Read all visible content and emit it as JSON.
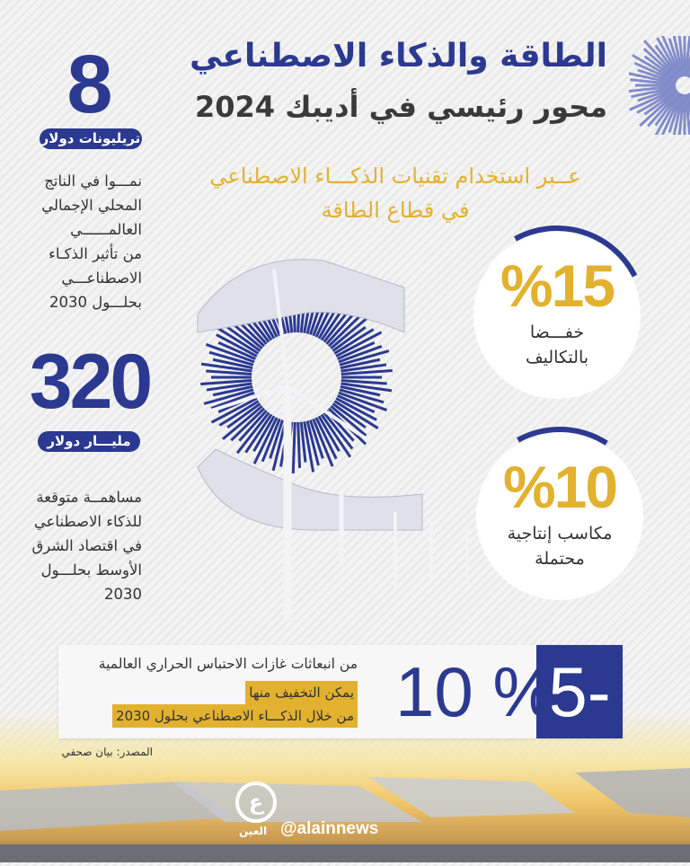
{
  "header": {
    "title": "الطاقة والذكاء الاصطناعي",
    "subtitle": "محور رئيسي في أديبك 2024",
    "tagline_1": "عــبر استخدام تقنيات الذكـــاء الاصطناعي",
    "tagline_2": "في قطاع الطاقة"
  },
  "stat_gdp": {
    "value": "8",
    "unit": "تريليونات دولار",
    "lines": [
      "نمـــوا في الناتج",
      "المحلي الإجمالي",
      "العالمــــــي",
      "من تأثير الذكـاء",
      "الاصطناعـــي",
      "بحلـــول 2030"
    ]
  },
  "stat_me": {
    "value": "320",
    "unit": "مليـــار دولار",
    "lines": [
      "مساهمــة متوقعة",
      "للذكاء الاصطناعي",
      "في اقتصاد الشرق",
      "الأوسط بحلـــول",
      "2030"
    ]
  },
  "circle_cost": {
    "value": "%15",
    "lines": [
      "خفـــضا",
      "بالتكاليف"
    ],
    "arc_fraction": 0.15
  },
  "circle_prod": {
    "value": "%10",
    "lines": [
      "مكاسب إنتاجية",
      "محتملة"
    ],
    "arc_fraction": 0.1
  },
  "emissions": {
    "range_low": "5-",
    "range_high": "10 %",
    "line_1": "من انبعاثات غازات الاحتباس الحراري العالمية",
    "line_2": "يمكن التخفيف منها",
    "line_3": "من خلال الذكـــاء الاصطناعي بحلول 2030"
  },
  "source": "المصدر: بيان صحفي",
  "footer": {
    "logo_text": "العين",
    "handle": "@alainnews"
  },
  "colors": {
    "blue": "#2b3990",
    "gold": "#e2b12f",
    "dark": "#3a3a3a"
  }
}
